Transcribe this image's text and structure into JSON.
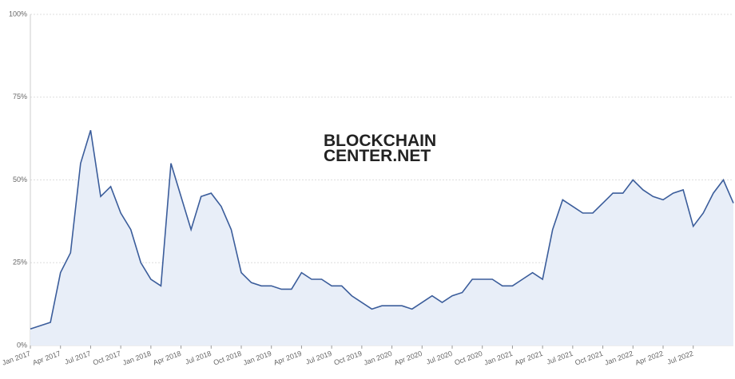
{
  "chart_data": {
    "type": "area",
    "watermark": [
      "BLOCKCHAIN",
      "CENTER.NET"
    ],
    "x": [
      "2017-01",
      "2017-02",
      "2017-03",
      "2017-04",
      "2017-05",
      "2017-06",
      "2017-07",
      "2017-08",
      "2017-09",
      "2017-10",
      "2017-11",
      "2017-12",
      "2018-01",
      "2018-02",
      "2018-03",
      "2018-04",
      "2018-05",
      "2018-06",
      "2018-07",
      "2018-08",
      "2018-09",
      "2018-10",
      "2018-11",
      "2018-12",
      "2019-01",
      "2019-02",
      "2019-03",
      "2019-04",
      "2019-05",
      "2019-06",
      "2019-07",
      "2019-08",
      "2019-09",
      "2019-10",
      "2019-11",
      "2019-12",
      "2020-01",
      "2020-02",
      "2020-03",
      "2020-04",
      "2020-05",
      "2020-06",
      "2020-07",
      "2020-08",
      "2020-09",
      "2020-10",
      "2020-11",
      "2020-12",
      "2021-01",
      "2021-02",
      "2021-03",
      "2021-04",
      "2021-05",
      "2021-06",
      "2021-07",
      "2021-08",
      "2021-09",
      "2021-10",
      "2021-11",
      "2021-12",
      "2022-01",
      "2022-02",
      "2022-03",
      "2022-04",
      "2022-05",
      "2022-06",
      "2022-07",
      "2022-08",
      "2022-09",
      "2022-10",
      "2022-11"
    ],
    "series": [
      {
        "color": "#3b5d9b",
        "fill": "#e8eef8",
        "values": [
          5,
          6,
          7,
          22,
          28,
          55,
          65,
          45,
          48,
          40,
          35,
          25,
          20,
          18,
          55,
          45,
          35,
          45,
          46,
          42,
          35,
          22,
          19,
          18,
          18,
          17,
          17,
          22,
          20,
          20,
          18,
          18,
          15,
          13,
          11,
          12,
          12,
          12,
          11,
          13,
          15,
          13,
          15,
          16,
          20,
          20,
          20,
          18,
          18,
          20,
          22,
          20,
          35,
          44,
          42,
          40,
          40,
          43,
          46,
          46,
          50,
          47,
          45,
          44,
          46,
          47,
          36,
          40,
          46,
          50,
          43
        ]
      }
    ],
    "xlim": [
      "2017-01",
      "2022-11"
    ],
    "xticks": [
      {
        "value": "2017-01",
        "label": "Jan 2017"
      },
      {
        "value": "2017-04",
        "label": "Apr 2017"
      },
      {
        "value": "2017-07",
        "label": "Jul 2017"
      },
      {
        "value": "2017-10",
        "label": "Oct 2017"
      },
      {
        "value": "2018-01",
        "label": "Jan 2018"
      },
      {
        "value": "2018-04",
        "label": "Apr 2018"
      },
      {
        "value": "2018-07",
        "label": "Jul 2018"
      },
      {
        "value": "2018-10",
        "label": "Oct 2018"
      },
      {
        "value": "2019-01",
        "label": "Jan 2019"
      },
      {
        "value": "2019-04",
        "label": "Apr 2019"
      },
      {
        "value": "2019-07",
        "label": "Jul 2019"
      },
      {
        "value": "2019-10",
        "label": "Oct 2019"
      },
      {
        "value": "2020-01",
        "label": "Jan 2020"
      },
      {
        "value": "2020-04",
        "label": "Apr 2020"
      },
      {
        "value": "2020-07",
        "label": "Jul 2020"
      },
      {
        "value": "2020-10",
        "label": "Oct 2020"
      },
      {
        "value": "2021-01",
        "label": "Jan 2021"
      },
      {
        "value": "2021-04",
        "label": "Apr 2021"
      },
      {
        "value": "2021-07",
        "label": "Jul 2021"
      },
      {
        "value": "2021-10",
        "label": "Oct 2021"
      },
      {
        "value": "2022-01",
        "label": "Jan 2022"
      },
      {
        "value": "2022-04",
        "label": "Apr 2022"
      },
      {
        "value": "2022-07",
        "label": "Jul 2022"
      }
    ],
    "ylim": [
      0,
      100
    ],
    "yticks": [
      {
        "value": 0,
        "label": "0%"
      },
      {
        "value": 25,
        "label": "25%"
      },
      {
        "value": 50,
        "label": "50%"
      },
      {
        "value": 75,
        "label": "75%"
      },
      {
        "value": 100,
        "label": "100%"
      }
    ],
    "grid": true
  }
}
